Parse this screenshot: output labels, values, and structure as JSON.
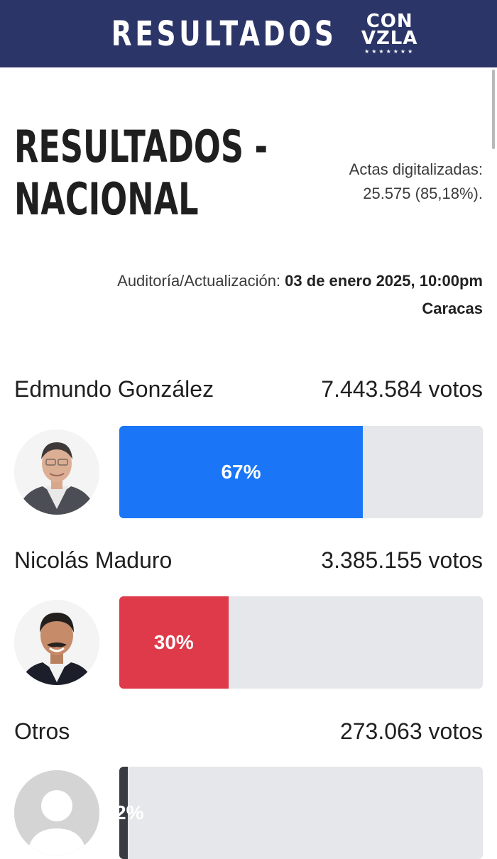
{
  "header": {
    "brand": "RESULTADOS",
    "logo_line1": "CON",
    "logo_line2": "VZLA",
    "logo_stars": "★★★★★★★"
  },
  "page": {
    "title_line1": "RESULTADOS -",
    "title_line2": "NACIONAL",
    "actas_label": "Actas digitalizadas:",
    "actas_value": "25.575 (85,18%).",
    "audit_label": "Auditoría/Actualización: ",
    "audit_date": "03 de enero 2025, 10:00pm",
    "audit_city": "Caracas"
  },
  "candidates": [
    {
      "name": "Edmundo González",
      "votes": "7.443.584 votos",
      "percent_label": "67%",
      "percent": 67,
      "color": "#1a76f7"
    },
    {
      "name": "Nicolás Maduro",
      "votes": "3.385.155 votos",
      "percent_label": "30%",
      "percent": 30,
      "color": "#de3a49"
    },
    {
      "name": "Otros",
      "votes": "273.063 votos",
      "percent_label": "2%",
      "percent": 2.4,
      "color": "#383c42"
    }
  ]
}
